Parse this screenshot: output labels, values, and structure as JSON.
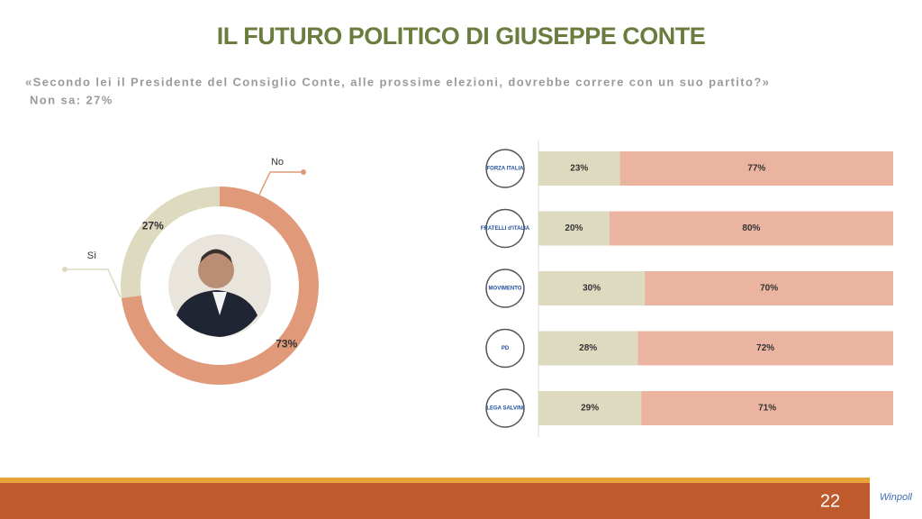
{
  "title": "IL FUTURO POLITICO DI GIUSEPPE CONTE",
  "subtitle": "«Secondo lei il Presidente del Consiglio Conte, alle prossime elezioni, dovrebbe correre con un suo partito?»",
  "note": "Non sa: 27%",
  "page_number": "22",
  "brand": "Winpoll",
  "chart_data": [
    {
      "type": "pie",
      "donut": true,
      "categories": [
        "No",
        "Sì"
      ],
      "values": [
        73,
        27
      ],
      "value_labels": [
        "73%",
        "27%"
      ],
      "colors": [
        "#e09a7a",
        "#dedac0"
      ]
    },
    {
      "type": "bar",
      "orientation": "horizontal",
      "stacked": true,
      "categories": [
        "FORZA ITALIA",
        "FRATELLI d'ITALIA",
        "MOVIMENTO",
        "PD",
        "LEGA SALVINI"
      ],
      "xlim": [
        0,
        100
      ],
      "series": [
        {
          "color": "#dedac0",
          "values": [
            23,
            20,
            30,
            28,
            29
          ],
          "value_labels": [
            "23%",
            "20%",
            "30%",
            "28%",
            "29%"
          ]
        },
        {
          "color": "#eab4a0",
          "values": [
            77,
            80,
            70,
            72,
            71
          ],
          "value_labels": [
            "77%",
            "80%",
            "70%",
            "72%",
            "71%"
          ]
        }
      ]
    }
  ]
}
